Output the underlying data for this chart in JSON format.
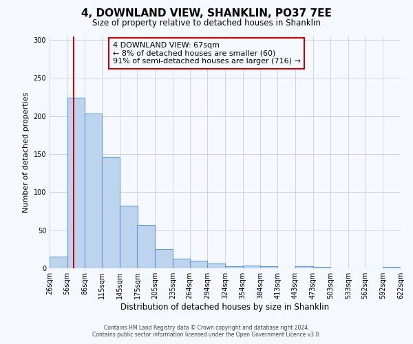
{
  "title": "4, DOWNLAND VIEW, SHANKLIN, PO37 7EE",
  "subtitle": "Size of property relative to detached houses in Shanklin",
  "xlabel": "Distribution of detached houses by size in Shanklin",
  "ylabel": "Number of detached properties",
  "bar_edges": [
    26,
    56,
    86,
    115,
    145,
    175,
    205,
    235,
    264,
    294,
    324,
    354,
    384,
    413,
    443,
    473,
    503,
    533,
    562,
    592,
    622
  ],
  "bar_heights": [
    15,
    224,
    203,
    146,
    82,
    57,
    25,
    13,
    10,
    6,
    3,
    4,
    3,
    0,
    3,
    2,
    0,
    0,
    0,
    2
  ],
  "bar_color": "#bdd4ee",
  "bar_edge_color": "#6699cc",
  "grid_color": "#c8d4e8",
  "vline_x": 67,
  "vline_color": "#cc0000",
  "annotation_title": "4 DOWNLAND VIEW: 67sqm",
  "annotation_line2": "← 8% of detached houses are smaller (60)",
  "annotation_line3": "91% of semi-detached houses are larger (716) →",
  "annotation_box_color": "#cc0000",
  "ylim": [
    0,
    305
  ],
  "tick_labels": [
    "26sqm",
    "56sqm",
    "86sqm",
    "115sqm",
    "145sqm",
    "175sqm",
    "205sqm",
    "235sqm",
    "264sqm",
    "294sqm",
    "324sqm",
    "354sqm",
    "384sqm",
    "413sqm",
    "443sqm",
    "473sqm",
    "503sqm",
    "533sqm",
    "562sqm",
    "592sqm",
    "622sqm"
  ],
  "footer_line1": "Contains HM Land Registry data © Crown copyright and database right 2024.",
  "footer_line2": "Contains public sector information licensed under the Open Government Licence v3.0.",
  "bg_color": "#f5f8ff",
  "plot_bg_color": "#f5f8ff"
}
